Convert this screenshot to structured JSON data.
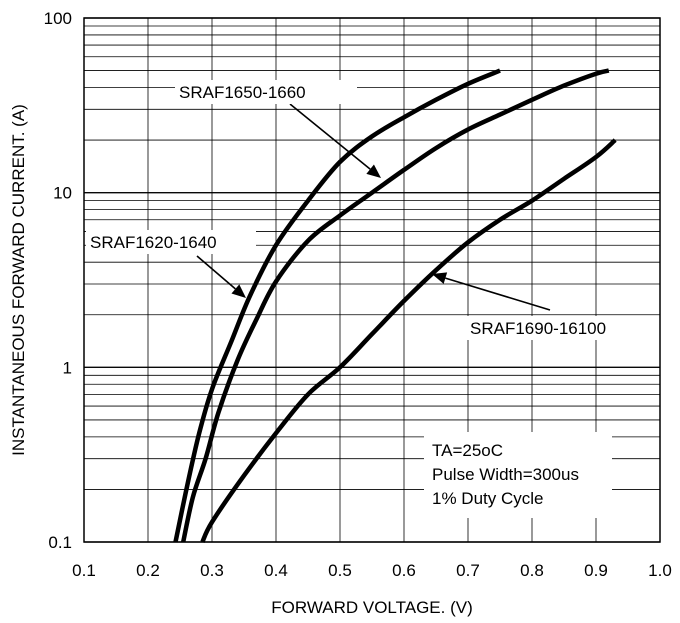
{
  "chart_data": {
    "type": "line",
    "title": "",
    "xlabel": "FORWARD VOLTAGE. (V)",
    "ylabel": "INSTANTANEOUS FORWARD CURRENT. (A)",
    "xlim": [
      0.1,
      1.0
    ],
    "ylim": [
      0.1,
      100
    ],
    "yscale": "log",
    "grid": true,
    "x_ticks": [
      "0.1",
      "0.2",
      "0.3",
      "0.4",
      "0.5",
      "0.6",
      "0.7",
      "0.8",
      "0.9",
      "1.0"
    ],
    "y_ticks": [
      "0.1",
      "1",
      "10",
      "100"
    ],
    "series": [
      {
        "name": "SRAF1620-1640",
        "x": [
          0.243,
          0.26,
          0.28,
          0.3,
          0.33,
          0.36,
          0.4,
          0.45,
          0.5,
          0.55,
          0.6,
          0.65,
          0.7,
          0.75
        ],
        "y": [
          0.1,
          0.2,
          0.42,
          0.75,
          1.4,
          2.6,
          5.0,
          9.0,
          15,
          21,
          27,
          34,
          42,
          50
        ]
      },
      {
        "name": "SRAF1650-1660",
        "x": [
          0.255,
          0.27,
          0.29,
          0.31,
          0.34,
          0.37,
          0.4,
          0.45,
          0.5,
          0.55,
          0.6,
          0.65,
          0.7,
          0.75,
          0.8,
          0.85,
          0.9,
          0.92
        ],
        "y": [
          0.1,
          0.18,
          0.3,
          0.55,
          1.1,
          1.9,
          3.1,
          5.3,
          7.4,
          10.0,
          13.5,
          18.0,
          23,
          28,
          34,
          41,
          48,
          50
        ]
      },
      {
        "name": "SRAF1690-16100",
        "x": [
          0.285,
          0.3,
          0.35,
          0.4,
          0.45,
          0.5,
          0.55,
          0.6,
          0.65,
          0.7,
          0.75,
          0.8,
          0.85,
          0.9,
          0.93
        ],
        "y": [
          0.1,
          0.13,
          0.24,
          0.42,
          0.7,
          1.0,
          1.55,
          2.4,
          3.6,
          5.2,
          7.0,
          9.0,
          12.0,
          16.0,
          20.0
        ]
      }
    ],
    "callouts": [
      "SRAF1650-1660",
      "SRAF1620-1640",
      "SRAF1690-16100"
    ],
    "conditions": [
      "TA=25oC",
      "Pulse Width=300us",
      "1% Duty Cycle"
    ]
  }
}
